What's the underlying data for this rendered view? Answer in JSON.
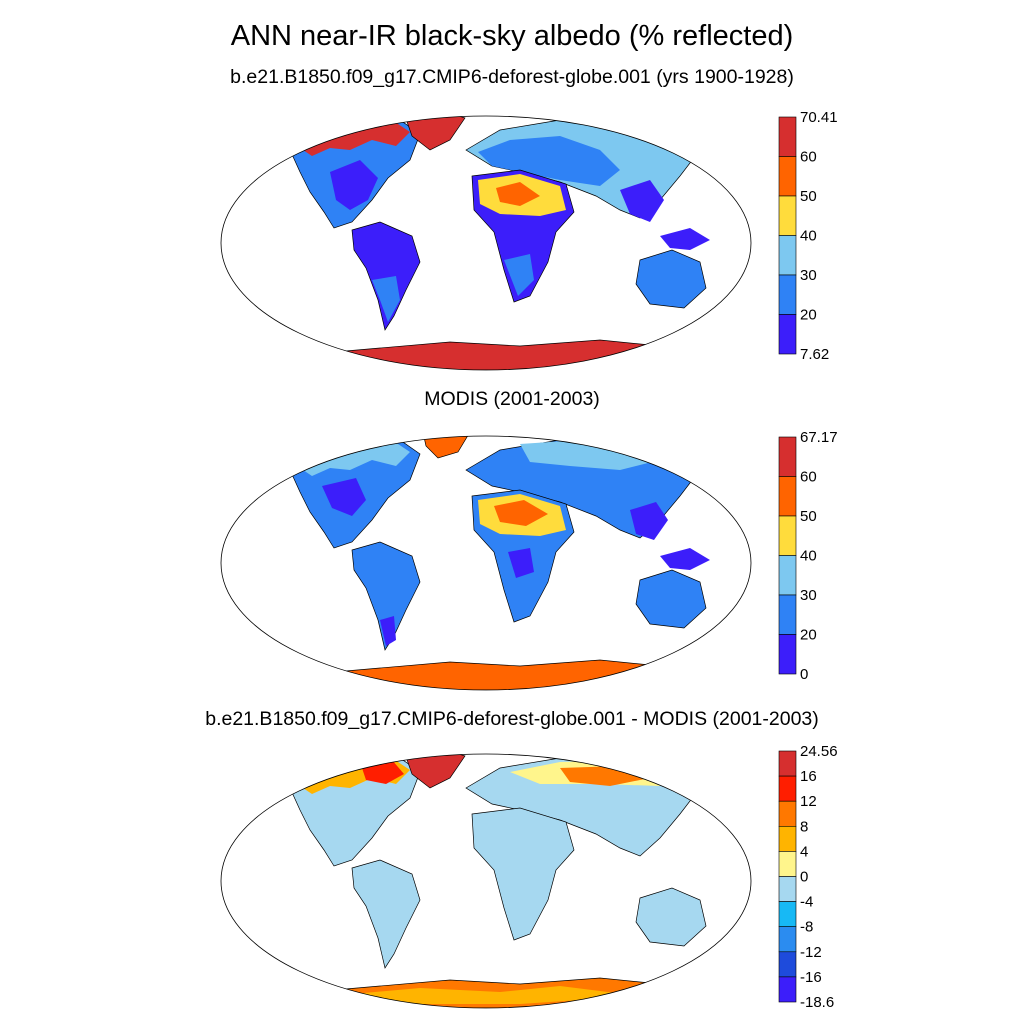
{
  "title": "ANN near-IR black-sky albedo (% reflected)",
  "panels": [
    {
      "subtitle": "b.e21.B1850.f09_g17.CMIP6-deforest-globe.001 (yrs 1900-1928)",
      "colorbar": {
        "labels": [
          "70.41",
          "60",
          "50",
          "40",
          "30",
          "20",
          "7.62"
        ],
        "colors": [
          "#d62f2f",
          "#ff6400",
          "#ffdc3c",
          "#7dc8f0",
          "#2f82f5",
          "#3c1efa"
        ]
      }
    },
    {
      "subtitle": "MODIS (2001-2003)",
      "colorbar": {
        "labels": [
          "67.17",
          "60",
          "50",
          "40",
          "30",
          "20",
          "0"
        ],
        "colors": [
          "#d62f2f",
          "#ff6400",
          "#ffdc3c",
          "#7dc8f0",
          "#2f82f5",
          "#3c1efa"
        ]
      }
    },
    {
      "subtitle": "b.e21.B1850.f09_g17.CMIP6-deforest-globe.001 - MODIS (2001-2003)",
      "colorbar": {
        "labels": [
          "24.56",
          "16",
          "12",
          "8",
          "4",
          "0",
          "-4",
          "-8",
          "-12",
          "-16",
          "-18.6"
        ],
        "colors": [
          "#d62f2f",
          "#ff1e00",
          "#ff7800",
          "#ffb400",
          "#fff58c",
          "#a6d8f0",
          "#17b9f5",
          "#2b8cf0",
          "#1e4bdc",
          "#3c1efa"
        ]
      }
    }
  ]
}
